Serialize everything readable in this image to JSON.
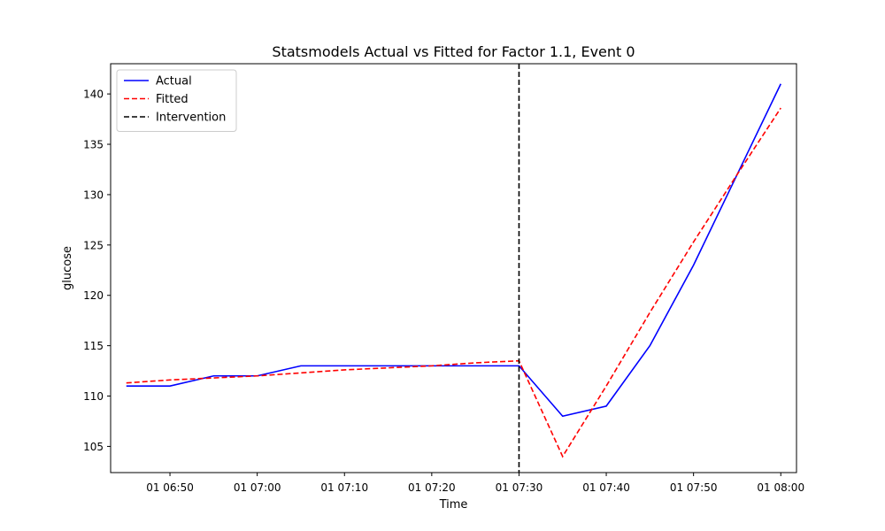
{
  "chart_data": {
    "type": "line",
    "title": "Statsmodels Actual vs Fitted for Factor 1.1, Event 0",
    "xlabel": "Time",
    "ylabel": "glucose",
    "x": [
      "06:45",
      "06:50",
      "06:55",
      "07:00",
      "07:05",
      "07:10",
      "07:15",
      "07:20",
      "07:25",
      "07:30",
      "07:35",
      "07:40",
      "07:45",
      "07:50",
      "07:55",
      "08:00"
    ],
    "x_minutes": [
      0,
      5,
      10,
      15,
      20,
      25,
      30,
      35,
      40,
      45,
      50,
      55,
      60,
      65,
      70,
      75
    ],
    "xlim": [
      -1.8,
      76.8
    ],
    "x_ticks": [
      {
        "minute": 5,
        "label": "01 06:50"
      },
      {
        "minute": 15,
        "label": "01 07:00"
      },
      {
        "minute": 25,
        "label": "01 07:10"
      },
      {
        "minute": 35,
        "label": "01 07:20"
      },
      {
        "minute": 45,
        "label": "01 07:30"
      },
      {
        "minute": 55,
        "label": "01 07:40"
      },
      {
        "minute": 65,
        "label": "01 07:50"
      },
      {
        "minute": 75,
        "label": "01 08:00"
      }
    ],
    "ylim": [
      102.4,
      143.0
    ],
    "y_ticks": [
      105,
      110,
      115,
      120,
      125,
      130,
      135,
      140
    ],
    "series": [
      {
        "name": "Actual",
        "color": "#0000ff",
        "dash": "solid",
        "values": [
          111,
          111,
          112,
          112,
          113,
          113,
          113,
          113,
          113,
          113,
          108,
          109,
          115,
          123,
          132,
          141
        ]
      },
      {
        "name": "Fitted",
        "color": "#ff0000",
        "dash": "dashed",
        "values": [
          111.3,
          111.6,
          111.8,
          112.0,
          112.3,
          112.6,
          112.8,
          113.0,
          113.3,
          113.5,
          104.0,
          111.0,
          118.3,
          125.3,
          132.0,
          138.6
        ]
      }
    ],
    "intervention": {
      "name": "Intervention",
      "minute": 45,
      "color": "#000000",
      "dash": "dashed"
    },
    "legend_position": "top-left",
    "grid": false
  }
}
